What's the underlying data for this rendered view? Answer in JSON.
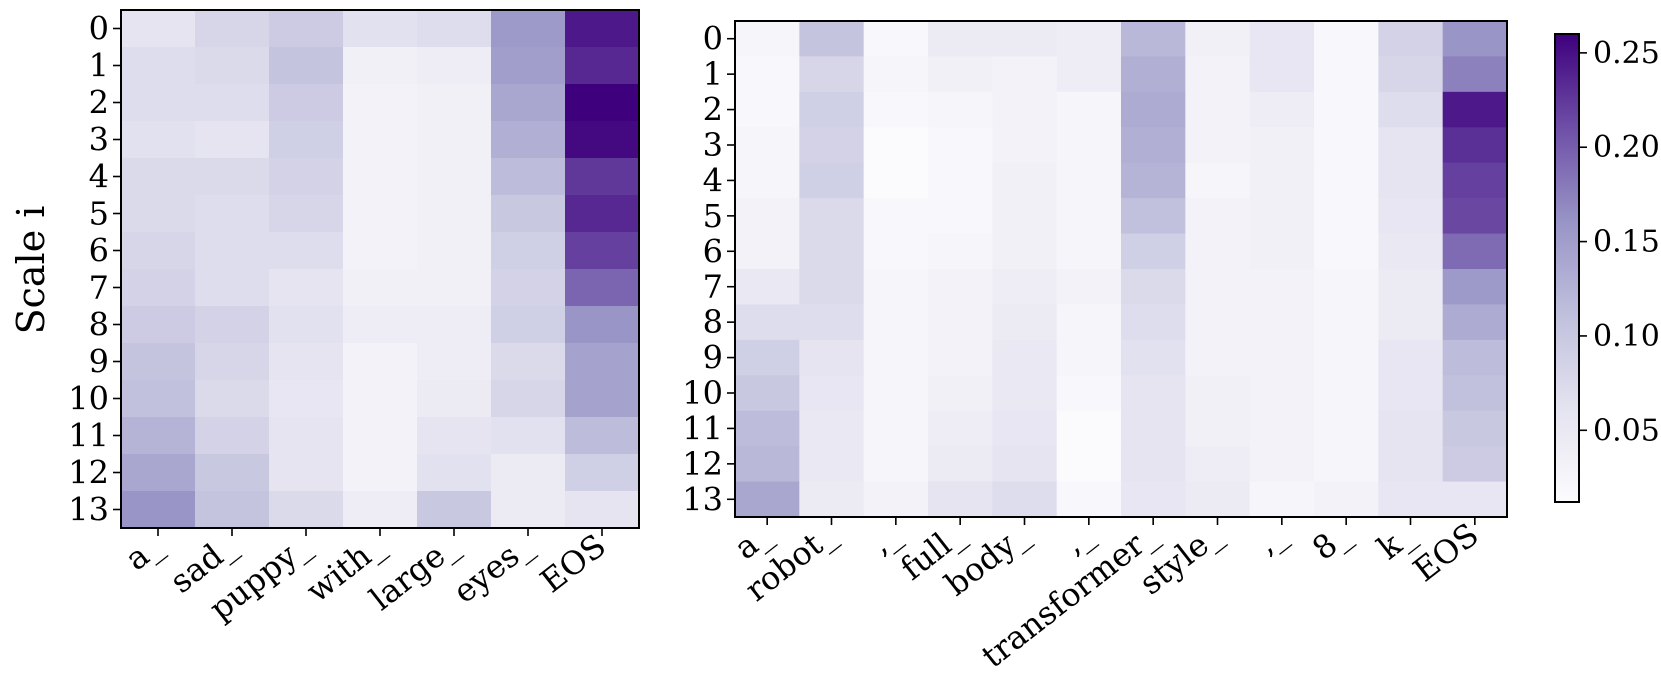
{
  "ylabel": "Scale i",
  "colors": {
    "low": "#fcfbfd",
    "mid": "#8a87bf",
    "high": "#3f007d"
  },
  "chart_data": [
    {
      "type": "heatmap",
      "rows": [
        "0",
        "1",
        "2",
        "3",
        "4",
        "5",
        "6",
        "7",
        "8",
        "9",
        "10",
        "11",
        "12",
        "13"
      ],
      "columns": [
        "a_",
        "sad_",
        "puppy_",
        "with_",
        "large_",
        "eyes_",
        "EOS"
      ],
      "values": [
        [
          0.06,
          0.08,
          0.095,
          0.065,
          0.07,
          0.155,
          0.245
        ],
        [
          0.07,
          0.075,
          0.105,
          0.035,
          0.04,
          0.15,
          0.235
        ],
        [
          0.07,
          0.07,
          0.095,
          0.03,
          0.035,
          0.14,
          0.26
        ],
        [
          0.065,
          0.06,
          0.09,
          0.03,
          0.035,
          0.13,
          0.255
        ],
        [
          0.075,
          0.075,
          0.085,
          0.03,
          0.035,
          0.115,
          0.225
        ],
        [
          0.075,
          0.07,
          0.08,
          0.03,
          0.035,
          0.1,
          0.235
        ],
        [
          0.08,
          0.07,
          0.07,
          0.03,
          0.035,
          0.09,
          0.22
        ],
        [
          0.085,
          0.07,
          0.06,
          0.035,
          0.035,
          0.085,
          0.195
        ],
        [
          0.095,
          0.085,
          0.065,
          0.04,
          0.04,
          0.09,
          0.16
        ],
        [
          0.105,
          0.08,
          0.06,
          0.03,
          0.04,
          0.075,
          0.145
        ],
        [
          0.11,
          0.075,
          0.055,
          0.03,
          0.045,
          0.08,
          0.145
        ],
        [
          0.125,
          0.085,
          0.06,
          0.03,
          0.06,
          0.065,
          0.115
        ],
        [
          0.14,
          0.1,
          0.06,
          0.03,
          0.065,
          0.045,
          0.09
        ],
        [
          0.16,
          0.105,
          0.075,
          0.04,
          0.1,
          0.045,
          0.06
        ]
      ]
    },
    {
      "type": "heatmap",
      "rows": [
        "0",
        "1",
        "2",
        "3",
        "4",
        "5",
        "6",
        "7",
        "8",
        "9",
        "10",
        "11",
        "12",
        "13"
      ],
      "columns": [
        "a_",
        "robot_",
        ",_",
        "full_",
        "body_",
        ",_",
        "transformer_",
        "style_",
        ",_",
        "8_",
        "k_",
        "EOS"
      ],
      "values": [
        [
          0.025,
          0.105,
          0.02,
          0.045,
          0.045,
          0.04,
          0.12,
          0.035,
          0.055,
          0.02,
          0.085,
          0.16
        ],
        [
          0.02,
          0.08,
          0.025,
          0.035,
          0.03,
          0.04,
          0.13,
          0.03,
          0.055,
          0.02,
          0.08,
          0.175
        ],
        [
          0.02,
          0.09,
          0.02,
          0.025,
          0.03,
          0.025,
          0.135,
          0.03,
          0.04,
          0.02,
          0.07,
          0.245
        ],
        [
          0.025,
          0.085,
          0.015,
          0.02,
          0.03,
          0.025,
          0.13,
          0.03,
          0.035,
          0.02,
          0.06,
          0.23
        ],
        [
          0.025,
          0.09,
          0.015,
          0.02,
          0.035,
          0.025,
          0.125,
          0.025,
          0.035,
          0.02,
          0.06,
          0.22
        ],
        [
          0.03,
          0.075,
          0.02,
          0.02,
          0.035,
          0.025,
          0.11,
          0.03,
          0.035,
          0.02,
          0.055,
          0.215
        ],
        [
          0.03,
          0.075,
          0.02,
          0.025,
          0.035,
          0.025,
          0.09,
          0.03,
          0.035,
          0.02,
          0.05,
          0.19
        ],
        [
          0.05,
          0.075,
          0.025,
          0.03,
          0.04,
          0.03,
          0.075,
          0.03,
          0.03,
          0.025,
          0.045,
          0.155
        ],
        [
          0.07,
          0.07,
          0.025,
          0.03,
          0.045,
          0.025,
          0.07,
          0.03,
          0.03,
          0.025,
          0.045,
          0.135
        ],
        [
          0.09,
          0.06,
          0.025,
          0.03,
          0.05,
          0.025,
          0.065,
          0.03,
          0.03,
          0.025,
          0.055,
          0.115
        ],
        [
          0.1,
          0.055,
          0.025,
          0.035,
          0.05,
          0.02,
          0.06,
          0.035,
          0.03,
          0.025,
          0.055,
          0.11
        ],
        [
          0.115,
          0.05,
          0.025,
          0.04,
          0.055,
          0.015,
          0.06,
          0.035,
          0.03,
          0.025,
          0.06,
          0.1
        ],
        [
          0.12,
          0.05,
          0.025,
          0.045,
          0.06,
          0.015,
          0.06,
          0.04,
          0.03,
          0.025,
          0.06,
          0.095
        ],
        [
          0.14,
          0.045,
          0.03,
          0.06,
          0.07,
          0.02,
          0.055,
          0.045,
          0.025,
          0.03,
          0.055,
          0.055
        ]
      ]
    }
  ],
  "colorbar": {
    "min": 0.012,
    "max": 0.26,
    "ticks": [
      0.05,
      0.1,
      0.15,
      0.2,
      0.25
    ],
    "tick_labels": [
      "0.05",
      "0.10",
      "0.15",
      "0.20",
      "0.25"
    ]
  }
}
